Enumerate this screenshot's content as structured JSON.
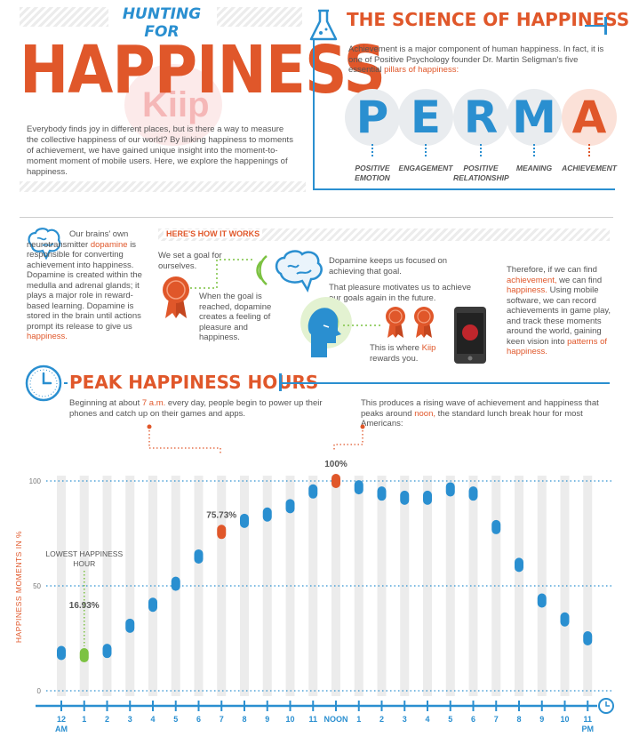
{
  "header": {
    "kicker": "HUNTING FOR",
    "title": "HAPPINESS",
    "intro": "Everybody finds joy in different places, but is there a way to measure the collective happiness of our world? By linking happiness to moments of achievement, we have gained unique insight into the moment-to-moment moment of mobile users. Here, we explore the happenings of happiness.",
    "watermark": "Kiip"
  },
  "science": {
    "title": "THE SCIENCE OF HAPPINESS",
    "body_1": "Achievement is a major component of human happiness. In fact, it is one of Positive Psychology founder Dr. Martin Seligman's five essential",
    "body_highlight": "pillars of happiness:",
    "perma": [
      {
        "letter": "P",
        "label_1": "POSITIVE",
        "label_2": "EMOTION"
      },
      {
        "letter": "E",
        "label_1": "ENGAGEMENT",
        "label_2": ""
      },
      {
        "letter": "R",
        "label_1": "POSITIVE",
        "label_2": "RELATIONSHIP"
      },
      {
        "letter": "M",
        "label_1": "MEANING",
        "label_2": ""
      },
      {
        "letter": "A",
        "label_1": "ACHIEVEMENT",
        "label_2": ""
      }
    ]
  },
  "brain": {
    "text_1": "Our brains' own neurotransmitter",
    "highlight_1": "dopamine",
    "text_2": "is responsible for converting achievement into happiness. Dopamine is created within the medulla and adrenal glands; it plays a major role in reward-based learning. Dopamine is stored in the brain until actions prompt its release to give us",
    "highlight_2": "happiness."
  },
  "how": {
    "heading": "HERE'S HOW IT WORKS",
    "step_goal": "We set a goal for ourselves.",
    "step_reached": "When the goal is reached, dopamine creates a feeling of pleasure and happiness.",
    "step_focused": "Dopamine keeps us focused on achieving that goal.",
    "step_pleasure": "That pleasure motivates us to achieve our goals again in the future.",
    "kiip_pre": "This is where",
    "kiip_word": "Kiip",
    "kiip_post": "rewards you.",
    "right_1": "Therefore, if we can find",
    "right_h1": "achievement,",
    "right_2": "we can find",
    "right_h2": "happiness.",
    "right_3": "Using mobile software, we can record achievements in game play, and track these moments around the world, gaining keen vision into",
    "right_h3": "patterns of happiness."
  },
  "peak": {
    "title": "PEAK HAPPINESS HOURS",
    "left_1": "Beginning at about",
    "left_h": "7 a.m.",
    "left_2": "every day, people begin to power up their phones and catch up on their games and apps.",
    "right_1": "This produces a rising wave of achievement and happiness that peaks around",
    "right_h": "noon,",
    "right_2": "the standard lunch break hour for most Americans:"
  },
  "colors": {
    "blue": "#2a8fd0",
    "orange": "#e0572a",
    "green": "#7cc242",
    "text": "#4a4a4a"
  },
  "chart_data": {
    "type": "scatter",
    "ylabel": "HAPPINESS MOMENTS IN %",
    "ylim": [
      0,
      100
    ],
    "yticks": [
      "0",
      "50",
      "100"
    ],
    "categories": [
      "12 AM",
      "1",
      "2",
      "3",
      "4",
      "5",
      "6",
      "7",
      "8",
      "9",
      "10",
      "11",
      "NOON",
      "1",
      "2",
      "3",
      "4",
      "5",
      "6",
      "7",
      "8",
      "9",
      "10",
      "11 PM"
    ],
    "values": [
      18,
      16.93,
      19,
      31,
      41,
      51,
      64,
      75.73,
      81,
      84,
      88,
      95,
      100,
      97,
      94,
      92,
      92,
      96,
      94,
      78,
      60,
      43,
      34,
      25
    ],
    "annotations": [
      {
        "label": "LOWEST HAPPINESS HOUR",
        "value_label": "16.93%",
        "index": 1
      },
      {
        "label": "",
        "value_label": "75.73%",
        "index": 7
      },
      {
        "label": "",
        "value_label": "100%",
        "index": 12
      }
    ],
    "highlight": {
      "lowest": 1,
      "orange": [
        7,
        12
      ]
    },
    "grid": true
  }
}
